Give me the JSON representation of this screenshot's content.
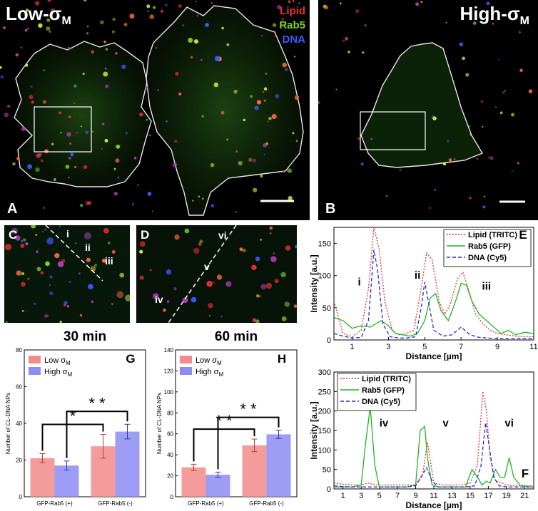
{
  "panelA": {
    "letter": "A",
    "title": "Low-σ",
    "title_sub": "M",
    "legend": [
      {
        "label": "Lipid",
        "color": "#e8312e"
      },
      {
        "label": "Rab5",
        "color": "#7ed321"
      },
      {
        "label": "DNA",
        "color": "#3b5bff"
      }
    ]
  },
  "panelB": {
    "letter": "B",
    "title": "High-σ",
    "title_sub": "M"
  },
  "panelC": {
    "letter": "C",
    "points": [
      "i",
      "ii",
      "iii"
    ]
  },
  "panelD": {
    "letter": "D",
    "points": [
      "iv",
      "v",
      "vi"
    ]
  },
  "panelG": {
    "letter": "G",
    "title": "30 min"
  },
  "panelH": {
    "letter": "H",
    "title": "60 min"
  },
  "panelE": {
    "letter": "E"
  },
  "panelF": {
    "letter": "F"
  },
  "colors": {
    "lipid": "#e8312e",
    "rab5": "#22b522",
    "dna": "#2a2ad4",
    "low": "#f28b8b",
    "high": "#8c8cf5"
  },
  "chart_data": [
    {
      "id": "E",
      "type": "line",
      "xlabel": "Distance [µm]",
      "ylabel": "Intensity [a.u.]",
      "xlim": [
        0,
        11
      ],
      "ylim": [
        0,
        175
      ],
      "xticks": [
        1,
        3,
        5,
        7,
        9,
        11
      ],
      "yticks": [
        0,
        50,
        100,
        150
      ],
      "annotations": [
        {
          "text": "i",
          "x": 1.4,
          "y": 85
        },
        {
          "text": "ii",
          "x": 4.6,
          "y": 95
        },
        {
          "text": "iii",
          "x": 8.4,
          "y": 78
        }
      ],
      "series": [
        {
          "name": "Lipid (TRITC)",
          "style": "dotted",
          "key": "lipid",
          "x": [
            0,
            0.5,
            1,
            1.5,
            1.9,
            2.2,
            2.5,
            2.8,
            3.2,
            3.6,
            4.0,
            4.4,
            4.8,
            5.1,
            5.4,
            5.8,
            6.1,
            6.4,
            6.8,
            7.1,
            7.4,
            7.8,
            8.2,
            8.6,
            9.0,
            9.5,
            10,
            10.5,
            11
          ],
          "y": [
            60,
            10,
            5,
            15,
            80,
            175,
            140,
            60,
            15,
            8,
            10,
            15,
            80,
            135,
            125,
            60,
            40,
            55,
            95,
            105,
            80,
            40,
            25,
            15,
            10,
            8,
            6,
            5,
            5
          ]
        },
        {
          "name": "Rab5 (GFP)",
          "style": "solid",
          "key": "rab5",
          "x": [
            0,
            0.5,
            1,
            1.5,
            2,
            2.3,
            2.6,
            3,
            3.4,
            3.8,
            4.2,
            4.6,
            5,
            5.3,
            5.6,
            5.9,
            6.3,
            6.7,
            7,
            7.3,
            7.6,
            8,
            8.4,
            8.8,
            9.2,
            9.6,
            10,
            10.5,
            11
          ],
          "y": [
            35,
            30,
            18,
            22,
            20,
            25,
            30,
            22,
            10,
            8,
            6,
            10,
            30,
            65,
            72,
            45,
            30,
            60,
            88,
            85,
            60,
            40,
            30,
            20,
            10,
            15,
            8,
            12,
            10
          ]
        },
        {
          "name": "DNA (Cy5)",
          "style": "dashed",
          "key": "dna",
          "x": [
            0,
            0.5,
            1,
            1.5,
            1.9,
            2.2,
            2.4,
            2.7,
            3.1,
            3.6,
            4.0,
            4.5,
            4.8,
            5.0,
            5.2,
            5.5,
            6,
            6.5,
            7,
            7.5,
            8,
            8.5,
            9,
            9.5,
            10,
            10.5,
            11
          ],
          "y": [
            10,
            6,
            3,
            4,
            30,
            140,
            110,
            25,
            5,
            3,
            3,
            5,
            50,
            90,
            60,
            15,
            6,
            8,
            20,
            8,
            4,
            3,
            2,
            2,
            2,
            2,
            2
          ]
        }
      ]
    },
    {
      "id": "F",
      "type": "line",
      "xlabel": "Distance [µm]",
      "ylabel": "Intensity [a.u.]",
      "xlim": [
        0,
        22
      ],
      "ylim": [
        0,
        300
      ],
      "xticks": [
        1,
        3,
        5,
        7,
        9,
        11,
        13,
        15,
        17,
        19,
        21
      ],
      "yticks": [
        0,
        50,
        100,
        150,
        200,
        250,
        300
      ],
      "annotations": [
        {
          "text": "iv",
          "x": 5.5,
          "y": 160
        },
        {
          "text": "v",
          "x": 12.3,
          "y": 160
        },
        {
          "text": "vi",
          "x": 19.3,
          "y": 160
        }
      ],
      "series": [
        {
          "name": "Lipid (TRITC)",
          "style": "dotted",
          "key": "lipid",
          "x": [
            0,
            1,
            2,
            3,
            3.8,
            4.5,
            5,
            6,
            7,
            8,
            9,
            9.8,
            10.3,
            11,
            12,
            13,
            14,
            15,
            15.8,
            16.4,
            16.8,
            17.2,
            17.8,
            18.5,
            19,
            20,
            21,
            22
          ],
          "y": [
            15,
            12,
            10,
            10,
            15,
            10,
            10,
            10,
            10,
            10,
            10,
            40,
            120,
            15,
            10,
            10,
            10,
            15,
            60,
            250,
            200,
            80,
            20,
            15,
            10,
            8,
            8,
            8
          ]
        },
        {
          "name": "Rab5 (GFP)",
          "style": "solid",
          "key": "rab5",
          "x": [
            0,
            1,
            2,
            3,
            3.5,
            4,
            4.5,
            5,
            6,
            7,
            8,
            9,
            9.5,
            10,
            10.3,
            10.8,
            11.5,
            12.5,
            13.5,
            14.5,
            15.2,
            15.8,
            16.3,
            16.8,
            17.2,
            17.8,
            18.3,
            18.8,
            19.3,
            19.8,
            20.5,
            21.5,
            22
          ],
          "y": [
            5,
            5,
            5,
            10,
            120,
            210,
            60,
            5,
            5,
            5,
            5,
            10,
            150,
            160,
            80,
            10,
            5,
            5,
            5,
            5,
            50,
            30,
            10,
            20,
            15,
            50,
            30,
            30,
            80,
            30,
            10,
            5,
            5
          ]
        },
        {
          "name": "DNA (Cy5)",
          "style": "dashed",
          "key": "dna",
          "x": [
            0,
            1,
            2,
            3,
            4,
            5,
            6,
            7,
            8,
            9,
            9.6,
            10.2,
            10.8,
            11.5,
            12.5,
            13.5,
            14.5,
            15.5,
            16.2,
            16.7,
            17.1,
            17.6,
            18.2,
            19,
            20,
            21,
            22
          ],
          "y": [
            8,
            6,
            5,
            5,
            5,
            5,
            5,
            5,
            5,
            8,
            30,
            55,
            20,
            5,
            5,
            5,
            5,
            8,
            60,
            170,
            110,
            30,
            8,
            5,
            5,
            5,
            5
          ]
        }
      ]
    },
    {
      "id": "G",
      "type": "bar",
      "title": "30 min",
      "ylabel": "Number of CL-DNA NPs",
      "ylim": [
        0,
        80
      ],
      "yticks": [
        0,
        20,
        40,
        60,
        80
      ],
      "categories": [
        "GFP-Rab5 (+)",
        "GFP-Rab5 (-)"
      ],
      "legend": [
        {
          "name": "Low σ",
          "sub": "M",
          "key": "low"
        },
        {
          "name": "High σ",
          "sub": "M",
          "key": "high"
        }
      ],
      "series": [
        {
          "name": "Low σM",
          "key": "low",
          "values": [
            21,
            27.5
          ],
          "errors": [
            2.5,
            6.5
          ]
        },
        {
          "name": "High σM",
          "key": "high",
          "values": [
            17,
            35.5
          ],
          "errors": [
            2.5,
            4
          ]
        }
      ],
      "significance": [
        {
          "label": "*",
          "from": [
            0,
            "low"
          ],
          "to": [
            1,
            "low"
          ]
        },
        {
          "label": "* *",
          "from": [
            0,
            "high"
          ],
          "to": [
            1,
            "high"
          ]
        }
      ]
    },
    {
      "id": "H",
      "type": "bar",
      "title": "60 min",
      "ylabel": "Number of CL-DNA NPs",
      "ylim": [
        0,
        140
      ],
      "yticks": [
        0,
        20,
        40,
        60,
        80,
        100,
        120,
        140
      ],
      "categories": [
        "GFP-Rab5 (+)",
        "GFP-Rab5 (-)"
      ],
      "legend": [
        {
          "name": "Low σ",
          "sub": "M",
          "key": "low"
        },
        {
          "name": "High σ",
          "sub": "M",
          "key": "high"
        }
      ],
      "series": [
        {
          "name": "Low σM",
          "key": "low",
          "values": [
            28,
            49
          ],
          "errors": [
            3,
            6
          ]
        },
        {
          "name": "High σM",
          "key": "high",
          "values": [
            21,
            59.5
          ],
          "errors": [
            2.5,
            4
          ]
        }
      ],
      "significance": [
        {
          "label": "* *",
          "from": [
            0,
            "low"
          ],
          "to": [
            1,
            "low"
          ]
        },
        {
          "label": "* *",
          "from": [
            0,
            "high"
          ],
          "to": [
            1,
            "high"
          ]
        }
      ]
    }
  ]
}
